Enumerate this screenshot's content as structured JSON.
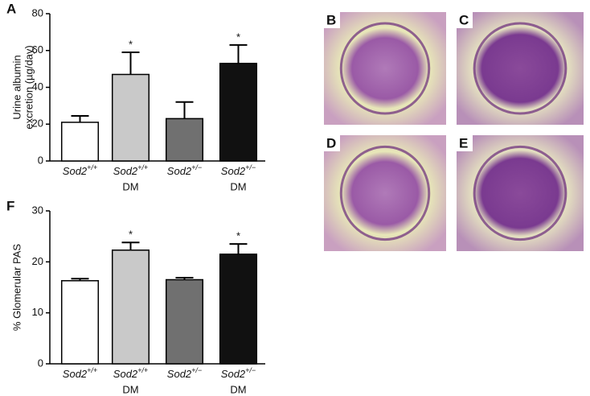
{
  "chart_data": [
    {
      "type": "bar",
      "panel": "A",
      "ylabel": [
        "Urine albumin",
        "excretion (µg/day)"
      ],
      "categories": [
        {
          "gene": "Sod2",
          "allele": "+/+"
        },
        {
          "gene": "Sod2",
          "allele": "+/+",
          "group": "DM"
        },
        {
          "gene": "Sod2",
          "allele": "+/−"
        },
        {
          "gene": "Sod2",
          "allele": "+/−",
          "group": "DM"
        }
      ],
      "values": [
        21,
        47,
        23,
        53
      ],
      "errors": [
        3.5,
        12,
        9,
        10
      ],
      "significance": [
        null,
        "*",
        null,
        "*"
      ],
      "colors": [
        "#ffffff",
        "#c9c9c9",
        "#707070",
        "#111111"
      ],
      "ylim": [
        0,
        80
      ],
      "yticks": [
        0,
        20,
        40,
        60,
        80
      ]
    },
    {
      "type": "bar",
      "panel": "F",
      "ylabel": [
        "% Glomerular PAS"
      ],
      "categories": [
        {
          "gene": "Sod2",
          "allele": "+/+"
        },
        {
          "gene": "Sod2",
          "allele": "+/+",
          "group": "DM"
        },
        {
          "gene": "Sod2",
          "allele": "+/−"
        },
        {
          "gene": "Sod2",
          "allele": "+/−",
          "group": "DM"
        }
      ],
      "values": [
        16.3,
        22.3,
        16.5,
        21.5
      ],
      "errors": [
        0.4,
        1.5,
        0.4,
        2.0
      ],
      "significance": [
        null,
        "*",
        null,
        "*"
      ],
      "colors": [
        "#ffffff",
        "#c9c9c9",
        "#707070",
        "#111111"
      ],
      "ylim": [
        0,
        30
      ],
      "yticks": [
        0,
        10,
        20,
        30
      ]
    }
  ],
  "image_panels": [
    {
      "label": "B"
    },
    {
      "label": "C"
    },
    {
      "label": "D"
    },
    {
      "label": "E"
    }
  ]
}
